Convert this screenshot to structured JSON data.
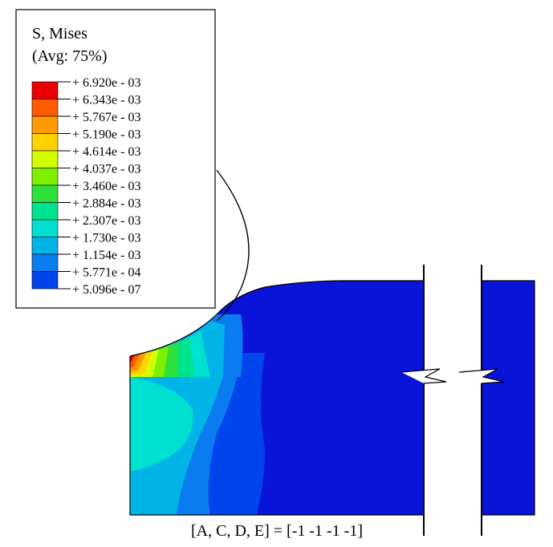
{
  "legend": {
    "title": "S, Mises",
    "subtitle": "(Avg: 75%)",
    "levels": [
      {
        "label": "+ 6.920e - 03",
        "color": "#e80000"
      },
      {
        "label": "+ 6.343e - 03",
        "color": "#ff5a00"
      },
      {
        "label": "+ 5.767e - 03",
        "color": "#ff9a00"
      },
      {
        "label": "+ 5.190e - 03",
        "color": "#ffd200"
      },
      {
        "label": "+ 4.614e - 03",
        "color": "#d2ff00"
      },
      {
        "label": "+ 4.037e - 03",
        "color": "#7cf000"
      },
      {
        "label": "+ 3.460e - 03",
        "color": "#2ee03a"
      },
      {
        "label": "+ 2.884e - 03",
        "color": "#00e38e"
      },
      {
        "label": "+ 2.307e - 03",
        "color": "#00e0d0"
      },
      {
        "label": "+ 1.730e - 03",
        "color": "#00b4e8"
      },
      {
        "label": "+ 1.154e - 03",
        "color": "#0a7cf0"
      },
      {
        "label": "+ 5.771e - 04",
        "color": "#0044ee"
      },
      {
        "label": "+ 5.096e - 07",
        "color": "#0a14d8"
      }
    ]
  },
  "caption": "[A, C, D, E] = [-1 -1 -1 -1]",
  "colors": {
    "bulk": "#0a14d8",
    "outline": "#000000"
  }
}
